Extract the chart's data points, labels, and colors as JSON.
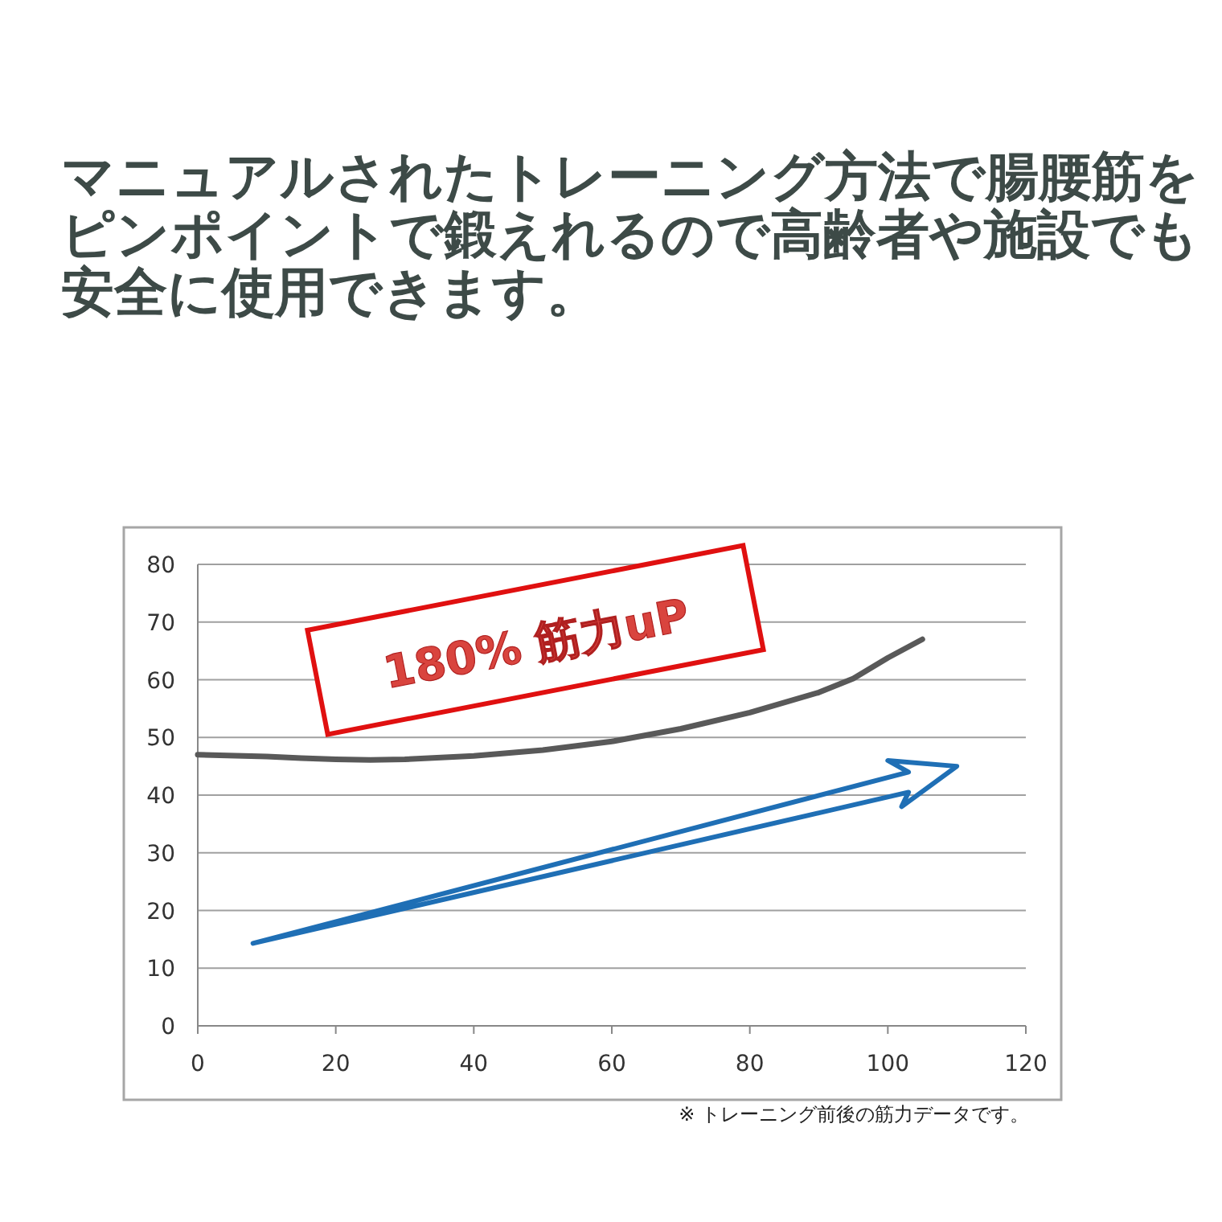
{
  "chart_data": {
    "type": "line",
    "title": "マニュアルされたトレーニング方法で腸腰筋をピンポイントで鍛えれるので高齢者や施設でも安全に使用できます。",
    "x": [
      0,
      10,
      15,
      20,
      25,
      30,
      40,
      50,
      60,
      70,
      80,
      90,
      95,
      100,
      105
    ],
    "series": [
      {
        "color": "#595959",
        "values": [
          47,
          46.7,
          46.4,
          46.2,
          46.1,
          46.2,
          46.8,
          47.8,
          49.3,
          51.5,
          54.3,
          57.8,
          60.2,
          63.8,
          67
        ]
      }
    ],
    "xlim": [
      0,
      120
    ],
    "xticks": [
      0,
      20,
      40,
      60,
      80,
      100,
      120
    ],
    "ylim": [
      0,
      80
    ],
    "yticks": [
      0,
      10,
      20,
      30,
      40,
      50,
      60,
      70,
      80
    ],
    "grid": "y",
    "annotations": [
      "180%  筋力uP",
      "※ トレーニング前後の筋力データです。"
    ]
  }
}
